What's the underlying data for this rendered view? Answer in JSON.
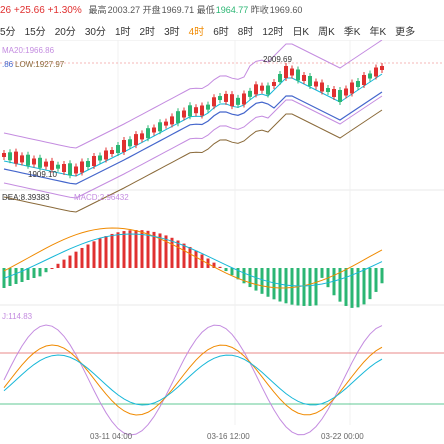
{
  "header": {
    "price_tail": "26",
    "change": "+25.66",
    "change_pct": "+1.30%",
    "high_label": "最高",
    "high_value": "2003.27",
    "open_label": "开盘",
    "open_value": "1969.71",
    "low_label": "最低",
    "low_value": "1964.77",
    "prev_label": "昨收",
    "prev_value": "1969.60"
  },
  "timeframes": [
    "5分",
    "15分",
    "20分",
    "30分",
    "1时",
    "2时",
    "3时",
    "4时",
    "6时",
    "8时",
    "12时",
    "日K",
    "周K",
    "季K",
    "年K",
    "更多"
  ],
  "active_timeframe": "4时",
  "indicators": {
    "ma20": "MA20:1966.86",
    "ma_tail": ".86",
    "low": "LOW:1927.97",
    "dea": "DEA:8.39383",
    "macd": "MACD:2.96432",
    "j": "J:114.83"
  },
  "annotations": {
    "high_mark": "2009.69",
    "low_mark": "1909.10"
  },
  "time_labels": [
    "03-11 04:00",
    "03-16 12:00",
    "03-22 00:00"
  ],
  "colors": {
    "up": "#e03030",
    "down": "#2bb673",
    "accent": "#f08a00",
    "ma1": "#17b7d8",
    "ma2": "#4466cc",
    "ma3": "#8a6a3a",
    "boll": "#c48ce0"
  }
}
